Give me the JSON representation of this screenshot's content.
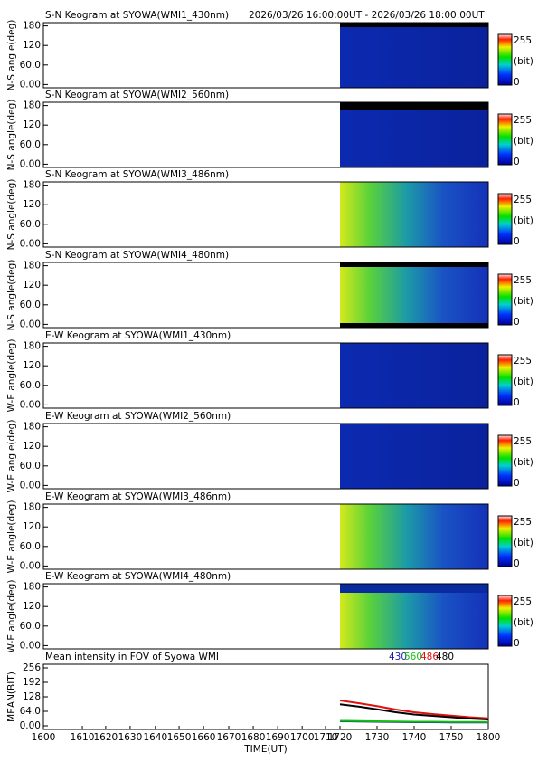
{
  "header": {
    "period": "2026/03/26 16:00:00UT - 2026/03/26 18:00:00UT"
  },
  "colorbar": {
    "max": 255,
    "unit": "(bit)",
    "min": 0
  },
  "chart_data": [
    {
      "type": "keogram",
      "title": "S-N Keogram at SYOWA(WMI1_430nm)",
      "y_label": "N-S angle(deg)",
      "ylim": [
        -10,
        190
      ],
      "yticks": [
        {
          "value": 0,
          "label": "0.00"
        },
        {
          "value": 60,
          "label": "60.0"
        },
        120,
        180
      ]
    },
    {
      "type": "keogram",
      "title": "S-N Keogram at SYOWA(WMI2_560nm)",
      "y_label": "N-S angle(deg)",
      "ylim": [
        -10,
        190
      ],
      "yticks": [
        {
          "value": 0,
          "label": "0.00"
        },
        {
          "value": 60,
          "label": "60.0"
        },
        120,
        180
      ]
    },
    {
      "type": "keogram",
      "title": "S-N Keogram at SYOWA(WMI3_486nm)",
      "y_label": "N-S angle(deg)",
      "ylim": [
        -10,
        190
      ],
      "yticks": [
        {
          "value": 0,
          "label": "0.00"
        },
        {
          "value": 60,
          "label": "60.0"
        },
        120,
        180
      ]
    },
    {
      "type": "keogram",
      "title": "S-N Keogram at SYOWA(WMI4_480nm)",
      "y_label": "N-S angle(deg)",
      "ylim": [
        -10,
        190
      ],
      "yticks": [
        {
          "value": 0,
          "label": "0.00"
        },
        {
          "value": 60,
          "label": "60.0"
        },
        120,
        180
      ]
    },
    {
      "type": "keogram",
      "title": "E-W Keogram at SYOWA(WMI1_430nm)",
      "y_label": "W-E angle(deg)",
      "ylim": [
        -10,
        190
      ],
      "yticks": [
        {
          "value": 0,
          "label": "0.00"
        },
        {
          "value": 60,
          "label": "60.0"
        },
        120,
        180
      ]
    },
    {
      "type": "keogram",
      "title": "E-W Keogram at SYOWA(WMI2_560nm)",
      "y_label": "W-E angle(deg)",
      "ylim": [
        -10,
        190
      ],
      "yticks": [
        {
          "value": 0,
          "label": "0.00"
        },
        {
          "value": 60,
          "label": "60.0"
        },
        120,
        180
      ]
    },
    {
      "type": "keogram",
      "title": "E-W Keogram at SYOWA(WMI3_486nm)",
      "y_label": "W-E angle(deg)",
      "ylim": [
        -10,
        190
      ],
      "yticks": [
        {
          "value": 0,
          "label": "0.00"
        },
        {
          "value": 60,
          "label": "60.0"
        },
        120,
        180
      ]
    },
    {
      "type": "keogram",
      "title": "E-W Keogram at SYOWA(WMI4_480nm)",
      "y_label": "W-E angle(deg)",
      "ylim": [
        -10,
        190
      ],
      "yticks": [
        {
          "value": 0,
          "label": "0.00"
        },
        {
          "value": 60,
          "label": "60.0"
        },
        120,
        180
      ]
    },
    {
      "type": "line",
      "title": "Mean intensity in FOV of Syowa WMI",
      "x_label": "TIME(UT)",
      "y_label": "MEAN(BIT)",
      "xlim": [
        0,
        120
      ],
      "xticks": [
        {
          "value": 0,
          "label": "1600"
        },
        {
          "value": 10.5,
          "label": "1610"
        },
        {
          "value": 16.8,
          "label": "1620"
        },
        {
          "value": 23.4,
          "label": "1630"
        },
        {
          "value": 30.2,
          "label": "1640"
        },
        {
          "value": 36.6,
          "label": "1650"
        },
        {
          "value": 43.2,
          "label": "1660"
        },
        {
          "value": 50,
          "label": "1670"
        },
        {
          "value": 56.6,
          "label": "1680"
        },
        {
          "value": 63.2,
          "label": "1690"
        },
        {
          "value": 69.8,
          "label": "1700"
        },
        {
          "value": 76.1,
          "label": "1710"
        },
        {
          "value": 80,
          "label": "1720"
        },
        {
          "value": 90,
          "label": "1730"
        },
        {
          "value": 100,
          "label": "1740"
        },
        {
          "value": 110,
          "label": "1750"
        },
        {
          "value": 120,
          "label": "1800"
        }
      ],
      "ylim": [
        -16,
        272
      ],
      "yticks": [
        {
          "value": 0,
          "label": "0.00"
        },
        {
          "value": 64,
          "label": "64.0"
        },
        128,
        192,
        256
      ],
      "x": [
        80,
        85,
        90,
        95,
        100,
        105,
        110,
        115,
        120
      ],
      "series": [
        {
          "name": "430",
          "color": "#1c1ca8",
          "values": [
            20,
            19,
            18,
            17,
            16,
            16,
            15,
            15,
            15
          ]
        },
        {
          "name": "560",
          "color": "#10c010",
          "values": [
            22,
            21,
            20,
            19,
            18,
            18,
            17,
            17,
            17
          ]
        },
        {
          "name": "486",
          "color": "#e01010",
          "values": [
            112,
            100,
            87,
            72,
            60,
            52,
            45,
            38,
            33
          ]
        },
        {
          "name": "480",
          "color": "#000000",
          "values": [
            95,
            85,
            73,
            60,
            50,
            44,
            38,
            32,
            28
          ]
        }
      ]
    }
  ]
}
